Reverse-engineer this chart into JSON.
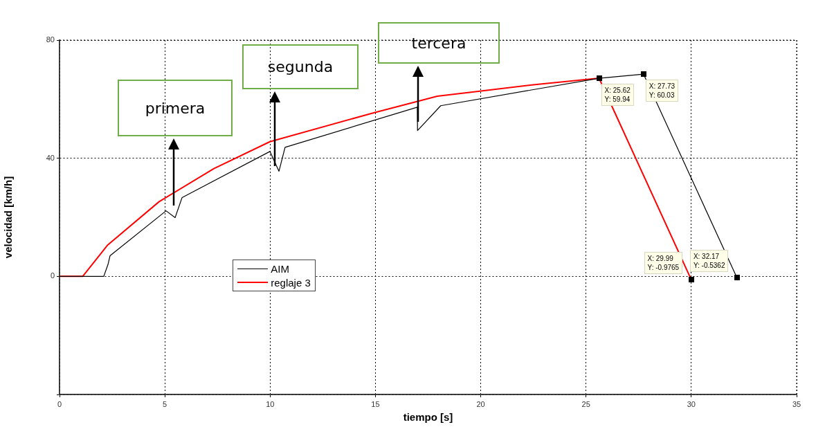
{
  "chart_data": {
    "type": "line",
    "xlabel": "tiempo [s]",
    "ylabel": "velocidad [km/h]",
    "xlim": [
      0,
      35
    ],
    "xticks": [
      0,
      5,
      10,
      15,
      20,
      25,
      30,
      35
    ],
    "ylim": [
      -40,
      80
    ],
    "yticks": [
      {
        "value": -40,
        "label": null
      },
      0,
      40,
      80
    ],
    "grid": true,
    "legend": "center",
    "series": [
      {
        "name": "AIM",
        "color": "#000000",
        "x": [
          0,
          2.1,
          2.3,
          2.4,
          5.06,
          5.49,
          5.82,
          9.99,
          10.42,
          10.71,
          16.99,
          17.0,
          18.1,
          25.62,
          27.73,
          32.17
        ],
        "values": [
          0,
          0,
          4,
          7,
          22.2,
          19.9,
          26.7,
          42.3,
          35.6,
          43.7,
          57.3,
          49.4,
          57.8,
          67.1,
          68.5,
          -0.5
        ]
      },
      {
        "name": "reglaje 3",
        "color": "#ff0000",
        "x": [
          0,
          1.1,
          2.27,
          4.73,
          7.33,
          9.99,
          14.92,
          17.94,
          19.95,
          22.5,
          25.62,
          29.99
        ],
        "values": [
          0,
          0,
          10.5,
          25.3,
          36.5,
          45.6,
          55.4,
          61,
          62.7,
          64.9,
          67.1,
          -1
        ]
      }
    ],
    "annotations": [
      "primera",
      "segunda",
      "tercera",
      {
        "text": "X: 25.62\nY: 59.94",
        "x": 25.62,
        "y": 67.1
      },
      {
        "text": "X: 27.73\nY: 60.03",
        "x": 27.73,
        "y": 68.5
      },
      {
        "text": "X: 29.99\nY: -0.9765",
        "x": 29.99,
        "y": -1
      },
      {
        "text": "X: 32.17\nY: -0.5362",
        "x": 32.17,
        "y": -0.5
      }
    ]
  }
}
